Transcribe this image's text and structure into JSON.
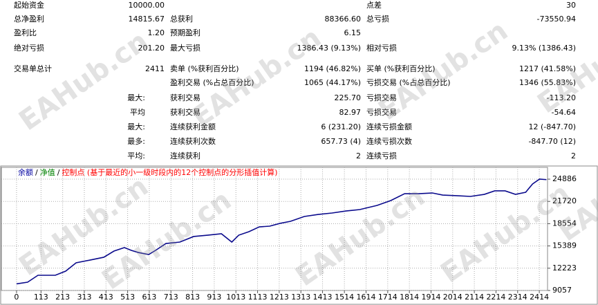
{
  "report": {
    "rows": [
      {
        "label": "起始资金",
        "value": "10000.00",
        "label3": "点差",
        "value3": "30"
      },
      {
        "label": "总净盈利",
        "value": "14815.67",
        "label2": "总获利",
        "value2": "88366.60",
        "label3": "总亏损",
        "value3": "-73550.94"
      },
      {
        "label": "盈利比",
        "value": "1.20",
        "label2": "预期盈利",
        "value2": "6.15"
      },
      {
        "label": "绝对亏损",
        "value": "201.20",
        "label2": "最大亏损",
        "value2": "1386.43 (9.13%)",
        "label3": "相对亏损",
        "value3": "9.13% (1386.43)"
      },
      {
        "label": "交易单总计",
        "value": "2411",
        "label2": "卖单 (%获利百分比)",
        "value2": "1194 (46.82%)",
        "label3": "买单 (%获利百分比)",
        "value3": "1217 (41.58%)"
      },
      {
        "label2": "盈利交易 (%占总百分比)",
        "value2": "1065 (44.17%)",
        "label3": "亏损交易 (%占总百分比)",
        "value3": "1346 (55.83%)"
      },
      {
        "sublabel": "最大:",
        "label2": "获利交易",
        "value2": "225.70",
        "label3": "亏损交易",
        "value3": "-113.20"
      },
      {
        "sublabel": "平均",
        "label2": "获利交易",
        "value2": "82.97",
        "label3": "亏损交易",
        "value3": "-54.64"
      },
      {
        "sublabel": "最大:",
        "label2": "连续获利金额",
        "value2": "6 (231.20)",
        "label3": "连续亏损金额",
        "value3": "12 (-847.70)"
      },
      {
        "sublabel": "最多:",
        "label2": "连续获利次数",
        "value2": "657.73 (4)",
        "label3": "连续亏损次数",
        "value3": "-847.70 (12)"
      },
      {
        "sublabel": "平均:",
        "label2": "连续获利",
        "value2": "2",
        "label3": "连续亏损",
        "value3": "2"
      }
    ],
    "watermark": "EAHub.cn"
  },
  "chart_data": {
    "type": "line",
    "legend": [
      {
        "text": "余额",
        "color": "#0000a0"
      },
      {
        "text": "净值",
        "color": "#008000"
      },
      {
        "text": "控制点 (基于最近的小一级时段内的12个控制点的分形插值计算)",
        "color": "#ff0000"
      }
    ],
    "legend_separator": "/",
    "x": [
      0,
      51,
      99,
      179,
      227,
      275,
      339,
      403,
      450,
      498,
      530,
      562,
      610,
      642,
      690,
      754,
      818,
      882,
      946,
      994,
      1026,
      1073,
      1121,
      1169,
      1217,
      1265,
      1329,
      1393,
      1457,
      1521,
      1585,
      1665,
      1728,
      1792,
      1856,
      1920,
      1968,
      2032,
      2096,
      2160,
      2208,
      2256,
      2304,
      2351,
      2383,
      2415,
      2447
    ],
    "series": [
      {
        "color": "#0a0a8c",
        "values": [
          10000,
          10237,
          11220,
          11220,
          11810,
          12990,
          13380,
          13780,
          14660,
          15150,
          14760,
          14460,
          14170,
          14760,
          15740,
          15940,
          16730,
          16920,
          17120,
          15940,
          16920,
          17420,
          18100,
          18200,
          18600,
          18890,
          19580,
          19870,
          20070,
          20360,
          20560,
          21150,
          21840,
          22820,
          22820,
          22920,
          22620,
          22530,
          22430,
          22720,
          23220,
          23220,
          22720,
          23020,
          24200,
          24890,
          24816
        ]
      }
    ],
    "xlim": [
      -70,
      2452
    ],
    "ylim": [
      9057,
      26560
    ],
    "xticks": [
      0,
      113,
      213,
      313,
      413,
      513,
      613,
      713,
      813,
      913,
      1013,
      1113,
      1213,
      1313,
      1413,
      1514,
      1614,
      1714,
      1814,
      1914,
      2014,
      2114,
      2214,
      2314,
      2414
    ],
    "yticks": [
      9057,
      12223,
      15389,
      18554,
      21720,
      24886
    ],
    "grid": true
  }
}
